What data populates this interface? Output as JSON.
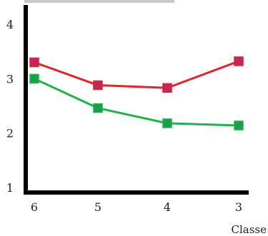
{
  "chart_data": {
    "type": "line",
    "title": "",
    "xlabel": "Classe",
    "ylabel": "",
    "categories": [
      "6",
      "5",
      "4",
      "3"
    ],
    "ylim": [
      1,
      4
    ],
    "yticks": [
      "1",
      "2",
      "3",
      "4"
    ],
    "grid": false,
    "legend": "none",
    "series": [
      {
        "values": [
          3.3,
          2.88,
          2.83,
          3.32
        ],
        "color": "#e8202a",
        "marker_color": "#c8245a"
      },
      {
        "values": [
          3.0,
          2.46,
          2.18,
          2.14
        ],
        "color": "#1fb34a",
        "marker_color": "#1aa04a"
      }
    ]
  }
}
